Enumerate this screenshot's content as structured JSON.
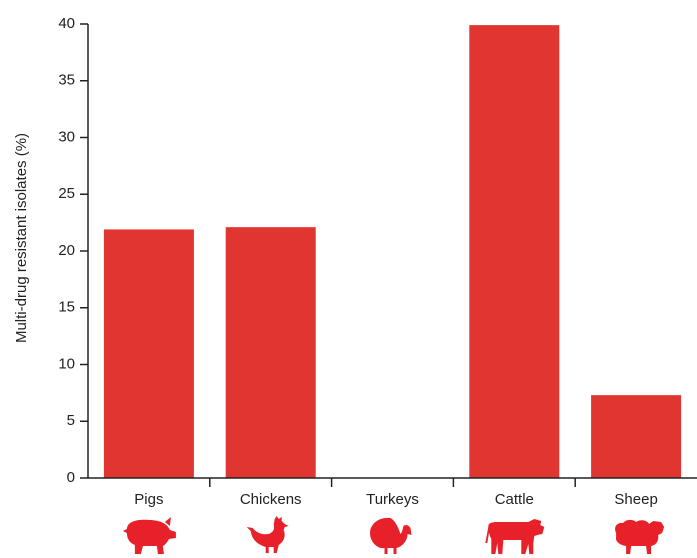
{
  "chart_data": {
    "type": "bar",
    "title": "",
    "xlabel": "",
    "ylabel": "Multi-drug resistant isolates (%)",
    "categories": [
      "Pigs",
      "Chickens",
      "Turkeys",
      "Cattle",
      "Sheep"
    ],
    "values": [
      21.9,
      22.1,
      0,
      39.9,
      7.3
    ],
    "ylim": [
      0,
      40
    ],
    "yticks": [
      "0",
      "5",
      "10",
      "15",
      "20",
      "25",
      "30",
      "35",
      "40"
    ],
    "grid": false,
    "legend": "none",
    "bar_color": "#e03530",
    "icon_color": "#e8202a",
    "icons": [
      "pig-icon",
      "chicken-icon",
      "turkey-icon",
      "cow-icon",
      "sheep-icon"
    ]
  }
}
